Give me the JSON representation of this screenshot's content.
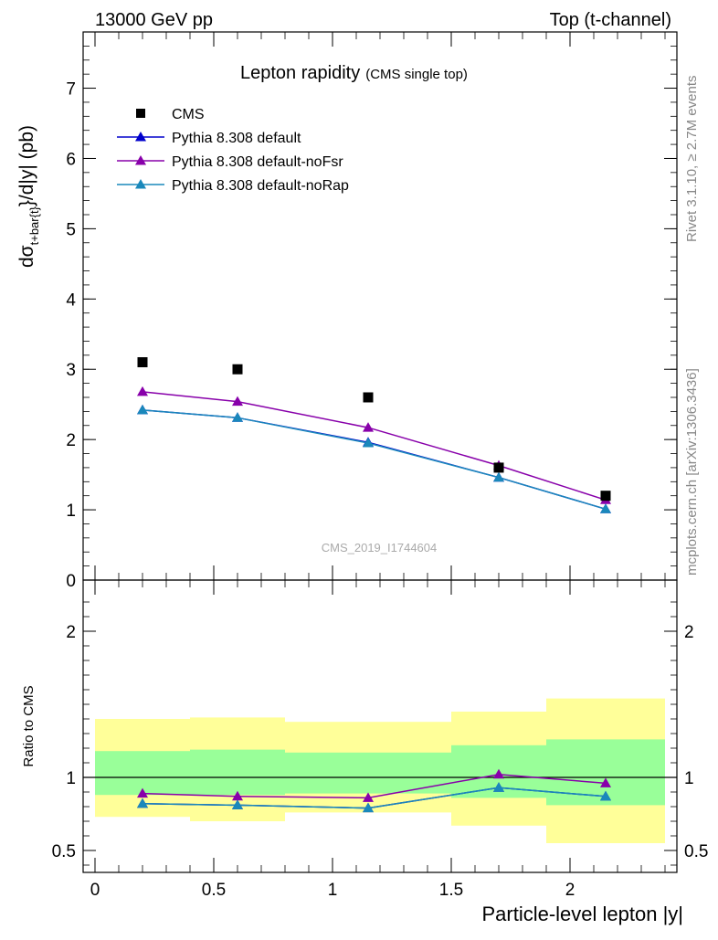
{
  "header": {
    "left": "13000 GeV pp",
    "right": "Top (t-channel)"
  },
  "side_labels": {
    "rivet": "Rivet 3.1.10, ≥ 2.7M events",
    "mcplots": "mcplots.cern.ch [arXiv:1306.3436]"
  },
  "chart_data": [
    {
      "type": "scatter",
      "title": "Lepton rapidity",
      "subtitle": "(CMS single top)",
      "watermark": "CMS_2019_I1744604",
      "ylabel": "dσ_{t+bar{t}}/d|y| (pb)",
      "ylim": [
        0,
        7.8
      ],
      "yticks": [
        0,
        1,
        2,
        3,
        4,
        5,
        6,
        7
      ],
      "legend_position": "top-left",
      "x": [
        0.2,
        0.6,
        1.15,
        1.7,
        2.15
      ],
      "series": [
        {
          "name": "CMS",
          "marker": "square",
          "color": "#000000",
          "values": [
            3.1,
            3.0,
            2.6,
            1.6,
            1.2
          ]
        },
        {
          "name": "Pythia 8.308 default",
          "marker": "triangle",
          "color": "#0000cc",
          "values": [
            2.42,
            2.31,
            1.96,
            1.46,
            1.01
          ]
        },
        {
          "name": "Pythia 8.308 default-noFsr",
          "marker": "triangle",
          "color": "#8800aa",
          "values": [
            2.68,
            2.54,
            2.17,
            1.63,
            1.14
          ]
        },
        {
          "name": "Pythia 8.308 default-noRap",
          "marker": "triangle",
          "color": "#1a88bb",
          "values": [
            2.42,
            2.31,
            1.95,
            1.46,
            1.01
          ]
        }
      ]
    },
    {
      "type": "line",
      "ylabel": "Ratio to CMS",
      "xlabel": "Particle-level lepton |y|",
      "xlim": [
        -0.05,
        2.45
      ],
      "xticks": [
        0,
        0.5,
        1,
        1.5,
        2
      ],
      "xtick_labels": [
        "0",
        "0.5",
        "1",
        "1.5",
        "2"
      ],
      "ylim": [
        0.35,
        2.35
      ],
      "yticks": [
        0.5,
        1,
        2
      ],
      "ytick_labels": [
        "0.5",
        "1",
        "2"
      ],
      "bins": [
        [
          0,
          0.4
        ],
        [
          0.4,
          0.8
        ],
        [
          0.8,
          1.5
        ],
        [
          1.5,
          1.9
        ],
        [
          1.9,
          2.4
        ]
      ],
      "uncertainty_bands": [
        {
          "name": "stat",
          "color": "#99ff99",
          "low": [
            0.88,
            0.88,
            0.89,
            0.86,
            0.81
          ],
          "high": [
            1.18,
            1.19,
            1.17,
            1.22,
            1.26
          ]
        },
        {
          "name": "total",
          "color": "#ffff99",
          "low": [
            0.73,
            0.7,
            0.76,
            0.67,
            0.55
          ],
          "high": [
            1.4,
            1.41,
            1.38,
            1.45,
            1.54
          ]
        }
      ],
      "x": [
        0.2,
        0.6,
        1.15,
        1.7,
        2.15
      ],
      "series": [
        {
          "name": "Pythia 8.308 default",
          "color": "#0000cc",
          "values": [
            0.82,
            0.81,
            0.79,
            0.93,
            0.87
          ]
        },
        {
          "name": "Pythia 8.308 default-noFsr",
          "color": "#8800aa",
          "values": [
            0.89,
            0.87,
            0.86,
            1.02,
            0.96
          ]
        },
        {
          "name": "Pythia 8.308 default-noRap",
          "color": "#1a88bb",
          "values": [
            0.82,
            0.81,
            0.79,
            0.93,
            0.87
          ]
        }
      ]
    }
  ]
}
